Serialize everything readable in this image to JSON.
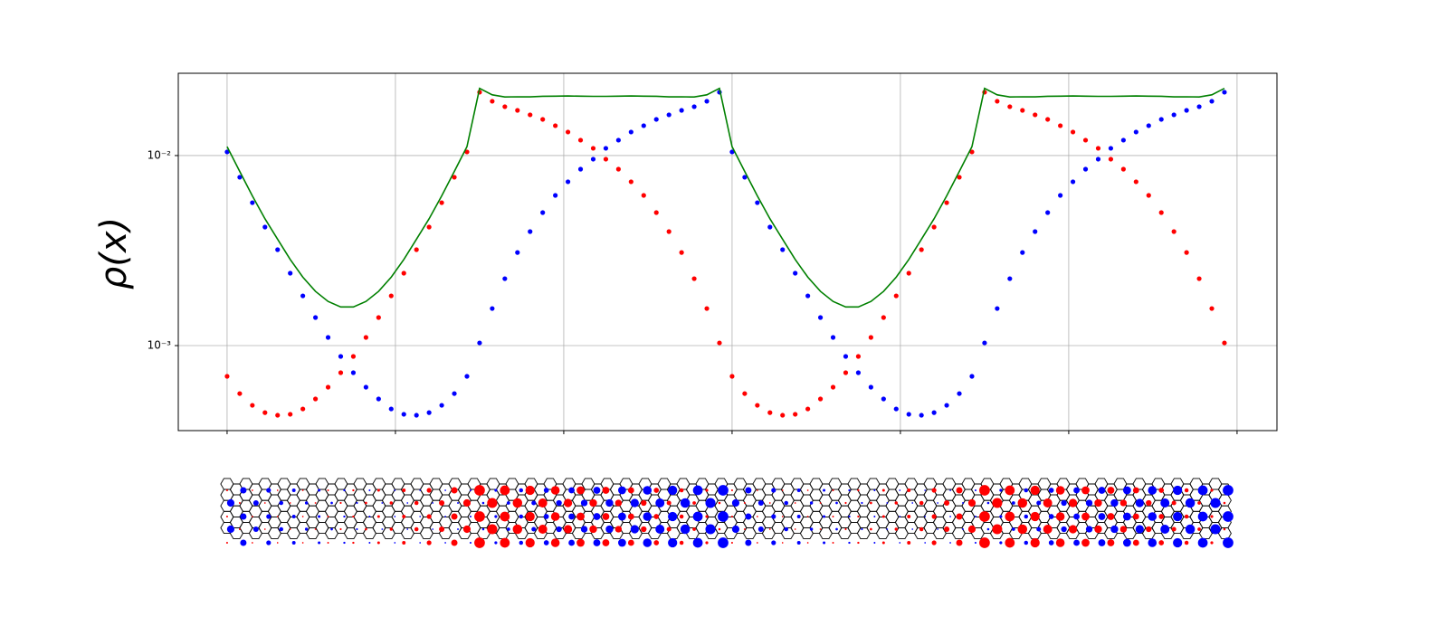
{
  "chart_data": {
    "type": "scatter",
    "y_label": "ρ(x)",
    "log_y": true,
    "grid": true,
    "x": [
      0,
      0.75,
      1.5,
      2.25,
      3,
      3.75,
      4.5,
      5.25,
      6,
      6.75,
      7.5,
      8.25,
      9,
      9.75,
      10.5,
      11.25,
      12,
      12.75,
      13.5,
      14.25,
      15,
      15.75,
      16.5,
      17.25,
      18,
      18.75,
      19.5,
      20.25,
      21,
      21.75,
      22.5,
      23.25,
      24,
      24.75,
      25.5,
      26.25,
      27,
      27.75,
      28.5,
      29.25,
      30,
      30.75,
      31.5,
      32.25,
      33,
      33.75,
      34.5,
      35.25,
      36,
      36.75,
      37.5,
      38.25,
      39,
      39.75,
      40.5,
      41.25,
      42,
      42.75,
      43.5,
      44.25,
      45,
      45.75,
      46.5,
      47.25,
      48,
      48.75,
      49.5,
      50.25,
      51,
      51.75,
      52.5,
      53.25,
      54,
      54.75,
      55.5,
      56.25,
      57,
      57.75,
      58.5,
      59.25
    ],
    "series": [
      {
        "color": "#ff0000",
        "mode": "markers",
        "values": [
          0.000689,
          0.000559,
          0.000485,
          0.000444,
          0.00043,
          0.000435,
          0.000464,
          0.000524,
          0.000604,
          0.00072,
          0.000877,
          0.001104,
          0.001405,
          0.001827,
          0.002404,
          0.003197,
          0.004205,
          0.00565,
          0.00769,
          0.01045,
          0.02154,
          0.01931,
          0.01808,
          0.01729,
          0.01638,
          0.0155,
          0.01436,
          0.0133,
          0.01205,
          0.01092,
          0.00957,
          0.00848,
          0.00728,
          0.00617,
          0.00501,
          0.00398,
          0.00309,
          0.00225,
          0.001567,
          0.001033,
          0.000689,
          0.000559,
          0.000485,
          0.000444,
          0.00043,
          0.000435,
          0.000464,
          0.000524,
          0.000604,
          0.00072,
          0.000877,
          0.001104,
          0.001405,
          0.001827,
          0.002404,
          0.003197,
          0.004205,
          0.00565,
          0.00769,
          0.01045,
          0.02154,
          0.01931,
          0.01808,
          0.01729,
          0.01638,
          0.0155,
          0.01436,
          0.0133,
          0.01205,
          0.01092,
          0.00957,
          0.00848,
          0.00728,
          0.00617,
          0.00501,
          0.00398,
          0.00309,
          0.00225,
          0.001567,
          0.001033
        ]
      },
      {
        "color": "#0000ff",
        "mode": "markers",
        "values": [
          0.01045,
          0.00769,
          0.00565,
          0.004205,
          0.003197,
          0.002404,
          0.001827,
          0.001405,
          0.001104,
          0.000877,
          0.00072,
          0.000604,
          0.000524,
          0.000464,
          0.000435,
          0.00043,
          0.000444,
          0.000485,
          0.000559,
          0.000689,
          0.001033,
          0.001567,
          0.00225,
          0.00309,
          0.00398,
          0.00501,
          0.00617,
          0.00728,
          0.00848,
          0.00957,
          0.01092,
          0.01205,
          0.0133,
          0.01436,
          0.0155,
          0.01638,
          0.01729,
          0.01808,
          0.01931,
          0.02154,
          0.01045,
          0.00769,
          0.00565,
          0.004205,
          0.003197,
          0.002404,
          0.001827,
          0.001405,
          0.001104,
          0.000877,
          0.00072,
          0.000604,
          0.000524,
          0.000464,
          0.000435,
          0.00043,
          0.000444,
          0.000485,
          0.000559,
          0.000689,
          0.001033,
          0.001567,
          0.00225,
          0.00309,
          0.00398,
          0.00501,
          0.00617,
          0.00728,
          0.00848,
          0.00957,
          0.01092,
          0.01205,
          0.0133,
          0.01436,
          0.0155,
          0.01638,
          0.01729,
          0.01808,
          0.01931,
          0.02154
        ]
      },
      {
        "color": "#008000",
        "mode": "line",
        "values": [
          0.011139,
          0.008249,
          0.006135,
          0.004649,
          0.003627,
          0.002839,
          0.002291,
          0.001929,
          0.001708,
          0.001597,
          0.001597,
          0.001708,
          0.001929,
          0.002291,
          0.002839,
          0.003627,
          0.004649,
          0.006135,
          0.008249,
          0.011139,
          0.022573,
          0.020877,
          0.02033,
          0.02038,
          0.02036,
          0.02051,
          0.02053,
          0.02058,
          0.02053,
          0.02049,
          0.02049,
          0.02053,
          0.02058,
          0.02053,
          0.02051,
          0.02036,
          0.02038,
          0.02033,
          0.020877,
          0.022573,
          0.011139,
          0.008249,
          0.006135,
          0.004649,
          0.003627,
          0.002839,
          0.002291,
          0.001929,
          0.001708,
          0.001597,
          0.001597,
          0.001708,
          0.001929,
          0.002291,
          0.002839,
          0.003627,
          0.004649,
          0.006135,
          0.008249,
          0.011139,
          0.022573,
          0.020877,
          0.02033,
          0.02038,
          0.02036,
          0.02051,
          0.02053,
          0.02058,
          0.02053,
          0.02049,
          0.02049,
          0.02053,
          0.02058,
          0.02053,
          0.02051,
          0.02036,
          0.02038,
          0.02033,
          0.020877,
          0.022573
        ]
      }
    ],
    "xlim": [
      -2.9,
      62.37
    ],
    "xticks": [
      0,
      10,
      20,
      30,
      40,
      50,
      60
    ],
    "ylim": [
      0.000357,
      0.0271
    ],
    "yticks": [
      {
        "value": 0.001,
        "label": "10⁻³"
      },
      {
        "value": 0.01,
        "label": "10⁻²"
      }
    ]
  }
}
